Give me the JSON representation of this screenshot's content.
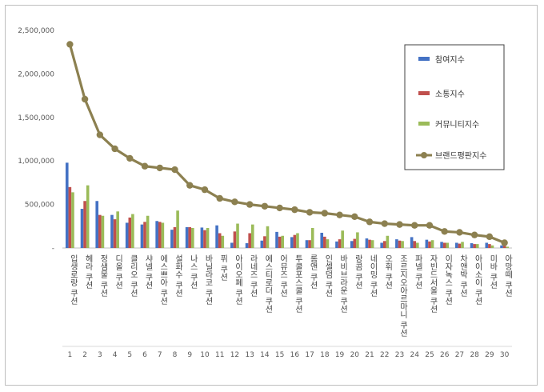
{
  "chart_data": {
    "type": "bar",
    "title": "",
    "xlabel": "",
    "ylabel": "",
    "ylim": [
      0,
      2500000
    ],
    "yticks": [
      "-",
      "500,000",
      "1,000,000",
      "1,500,000",
      "2,000,000",
      "2,500,000"
    ],
    "grid": false,
    "legend_position": "right",
    "numbers": [
      "1",
      "2",
      "3",
      "4",
      "5",
      "6",
      "7",
      "8",
      "9",
      "10",
      "11",
      "12",
      "13",
      "14",
      "15",
      "16",
      "17",
      "18",
      "19",
      "20",
      "21",
      "22",
      "23",
      "24",
      "25",
      "26",
      "27",
      "28",
      "29",
      "30"
    ],
    "categories": [
      "입생로랑 쿠션",
      "헤라 쿠션",
      "정샘물 쿠션",
      "디올 쿠션",
      "클리오 쿠션",
      "샤넬 쿠션",
      "에스쁘아 쿠션",
      "설화수 쿠션",
      "나스 쿠션",
      "바닐라코 쿠션",
      "퓌 쿠션",
      "아이오페 쿠션",
      "라네즈 쿠션",
      "에스티로더 쿠션",
      "어뮤즈 쿠션",
      "투쿨포스쿨 쿠션",
      "롬앤 쿠션",
      "인셀덤 쿠션",
      "바비브라운 쿠션",
      "랑콤 쿠션",
      "네이밍 쿠션",
      "오휘 쿠션",
      "조르지오아르마니 쿠션",
      "파넬 쿠션",
      "자빈드서울 쿠션",
      "이자녹스 쿠션",
      "차앤박 쿠션",
      "아이소이 쿠션",
      "미바 쿠션",
      "아망떼 쿠션"
    ],
    "series": [
      {
        "name": "참여지수",
        "type": "bar",
        "color": "#4472c4",
        "values": [
          980000,
          450000,
          540000,
          380000,
          290000,
          270000,
          310000,
          210000,
          240000,
          235000,
          260000,
          60000,
          55000,
          85000,
          185000,
          125000,
          90000,
          175000,
          75000,
          80000,
          110000,
          60000,
          100000,
          125000,
          95000,
          70000,
          60000,
          55000,
          60000,
          30000
        ]
      },
      {
        "name": "소통지수",
        "type": "bar",
        "color": "#c0504d",
        "values": [
          700000,
          540000,
          380000,
          330000,
          350000,
          300000,
          300000,
          240000,
          240000,
          205000,
          170000,
          190000,
          170000,
          135000,
          130000,
          150000,
          90000,
          130000,
          100000,
          105000,
          95000,
          80000,
          85000,
          80000,
          75000,
          60000,
          50000,
          45000,
          45000,
          25000
        ]
      },
      {
        "name": "커뮤니티지수",
        "type": "bar",
        "color": "#9bbb59",
        "values": [
          640000,
          720000,
          370000,
          420000,
          390000,
          370000,
          290000,
          430000,
          230000,
          230000,
          140000,
          280000,
          270000,
          250000,
          140000,
          170000,
          230000,
          100000,
          200000,
          180000,
          90000,
          140000,
          80000,
          60000,
          90000,
          60000,
          70000,
          45000,
          30000,
          15000
        ]
      },
      {
        "name": "브랜드평판지수",
        "type": "line",
        "color": "#8c8050",
        "values": [
          2340000,
          1710000,
          1300000,
          1140000,
          1030000,
          940000,
          920000,
          900000,
          720000,
          670000,
          570000,
          530000,
          500000,
          480000,
          460000,
          440000,
          410000,
          400000,
          380000,
          360000,
          300000,
          280000,
          270000,
          260000,
          260000,
          190000,
          180000,
          150000,
          130000,
          60000
        ]
      }
    ]
  }
}
